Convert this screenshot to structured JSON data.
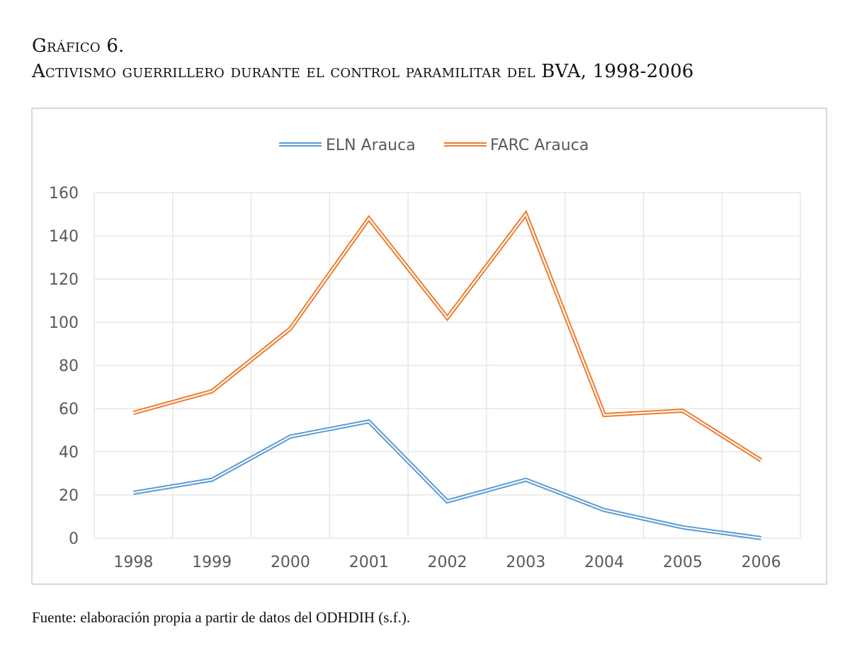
{
  "caption": {
    "figure_number": "Gráfico 6.",
    "title": "Activismo guerrillero durante el control paramilitar del BVA, 1998-2006",
    "source": "Fuente: elaboración propia a partir de datos del ODHDIH (s.f.)."
  },
  "chart_data": {
    "type": "line",
    "title": "",
    "xlabel": "",
    "ylabel": "",
    "categories": [
      "1998",
      "1999",
      "2000",
      "2001",
      "2002",
      "2003",
      "2004",
      "2005",
      "2006"
    ],
    "ylim": [
      0,
      160
    ],
    "yticks": [
      0,
      20,
      40,
      60,
      80,
      100,
      120,
      140,
      160
    ],
    "grid": true,
    "legend_position": "top-center",
    "series": [
      {
        "name": "ELN Arauca",
        "color": "#5B9BD5",
        "values": [
          21,
          27,
          47,
          54,
          17,
          27,
          13,
          5,
          0
        ]
      },
      {
        "name": "FARC Arauca",
        "color": "#ED7D31",
        "values": [
          58,
          68,
          97,
          148,
          102,
          150,
          57,
          59,
          36
        ]
      }
    ]
  }
}
